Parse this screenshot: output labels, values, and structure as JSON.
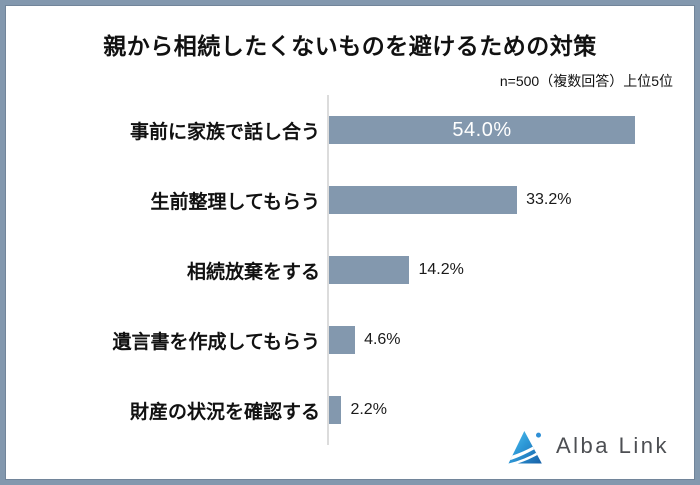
{
  "chart_data": {
    "type": "bar",
    "orientation": "horizontal",
    "title": "親から相続したくないものを避けるための対策",
    "note": "n=500（複数回答）上位5位",
    "categories": [
      "事前に家族で話し合う",
      "生前整理してもらう",
      "相続放棄をする",
      "遺言書を作成してもらう",
      "財産の状況を確認する"
    ],
    "values": [
      54.0,
      33.2,
      14.2,
      4.6,
      2.2
    ],
    "value_labels": [
      "54.0%",
      "33.2%",
      "14.2%",
      "4.6%",
      "2.2%"
    ],
    "value_label_inside": [
      true,
      false,
      false,
      false,
      false
    ],
    "xlim": [
      0,
      60
    ],
    "grid": false,
    "legend": "none",
    "bar_color": "#8398ae",
    "axis_line_color": "#dcdcdc",
    "inside_label_color": "#ffffff",
    "outside_label_color": "#1a1a1a"
  },
  "frame": {
    "border_color": "#8398ae"
  },
  "footer": {
    "logo_text": "Alba Link"
  }
}
